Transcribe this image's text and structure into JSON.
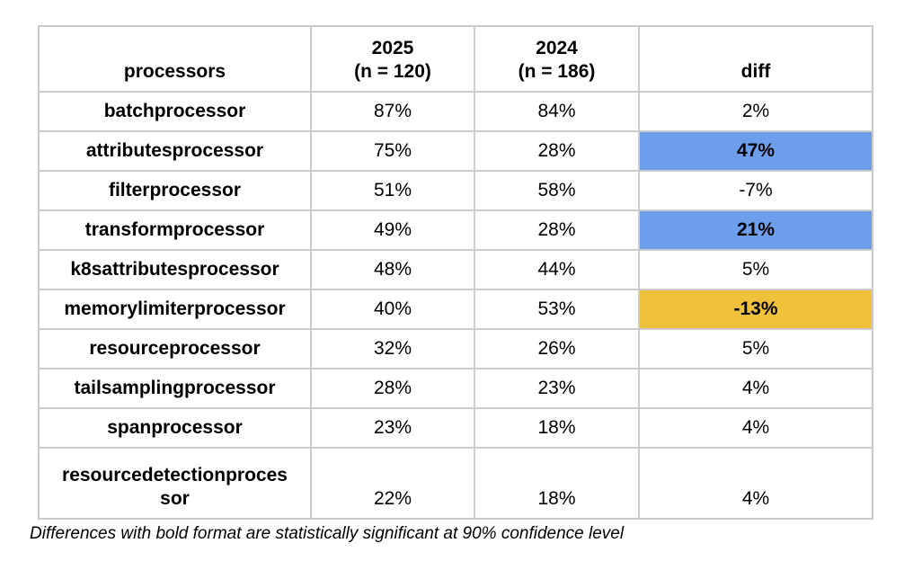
{
  "table": {
    "columns": [
      {
        "label": "processors",
        "sublabel": ""
      },
      {
        "label": "2025",
        "sublabel": "(n = 120)"
      },
      {
        "label": "2024",
        "sublabel": "(n = 186)"
      },
      {
        "label": "diff",
        "sublabel": ""
      }
    ],
    "rows": [
      {
        "processor": "batchprocessor",
        "y2025": "87%",
        "y2024": "84%",
        "diff": "2%",
        "highlight": null
      },
      {
        "processor": "attributesprocessor",
        "y2025": "75%",
        "y2024": "28%",
        "diff": "47%",
        "highlight": "blue"
      },
      {
        "processor": "filterprocessor",
        "y2025": "51%",
        "y2024": "58%",
        "diff": "-7%",
        "highlight": null
      },
      {
        "processor": "transformprocessor",
        "y2025": "49%",
        "y2024": "28%",
        "diff": "21%",
        "highlight": "blue"
      },
      {
        "processor": "k8sattributesprocessor",
        "y2025": "48%",
        "y2024": "44%",
        "diff": "5%",
        "highlight": null
      },
      {
        "processor": "memorylimiterprocessor",
        "y2025": "40%",
        "y2024": "53%",
        "diff": "-13%",
        "highlight": "orange"
      },
      {
        "processor": "resourceprocessor",
        "y2025": "32%",
        "y2024": "26%",
        "diff": "5%",
        "highlight": null
      },
      {
        "processor": "tailsamplingprocessor",
        "y2025": "28%",
        "y2024": "23%",
        "diff": "4%",
        "highlight": null
      },
      {
        "processor": "spanprocessor",
        "y2025": "23%",
        "y2024": "18%",
        "diff": "4%",
        "highlight": null
      },
      {
        "processor": "resourcedetectionprocessor",
        "y2025": "22%",
        "y2024": "18%",
        "diff": "4%",
        "highlight": null
      }
    ]
  },
  "caption": "Differences with bold format are statistically significant at 90% confidence level",
  "colors": {
    "highlight_blue": "#6d9eeb",
    "highlight_orange": "#f0c23c",
    "border": "#cbcbcb",
    "text": "#000000"
  }
}
